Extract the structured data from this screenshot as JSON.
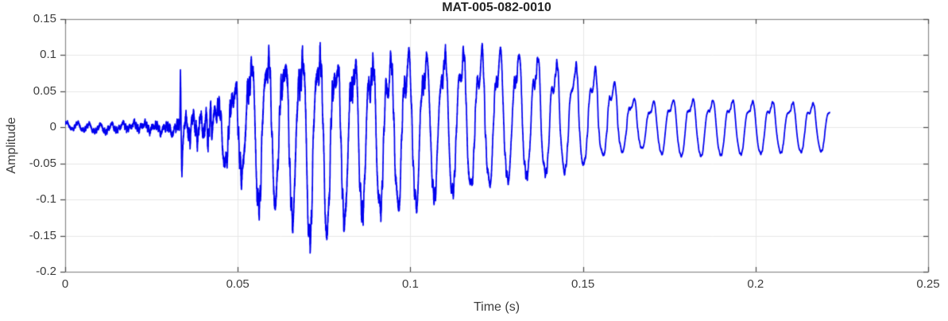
{
  "chart_data": {
    "type": "line",
    "title": "MAT-005-082-0010",
    "xlabel": "Time (s)",
    "ylabel": "Amplitude",
    "xlim": [
      0,
      0.25
    ],
    "ylim": [
      -0.2,
      0.15
    ],
    "xticks": [
      0,
      0.05,
      0.1,
      0.15,
      0.2,
      0.25
    ],
    "xtick_labels": [
      "0",
      "0.05",
      "0.1",
      "0.15",
      "0.2",
      "0.25"
    ],
    "yticks": [
      -0.2,
      -0.15,
      -0.1,
      -0.05,
      0,
      0.05,
      0.1,
      0.15
    ],
    "ytick_labels": [
      "-0.2",
      "-0.15",
      "-0.1",
      "-0.05",
      "0",
      "0.05",
      "0.1",
      "0.15"
    ],
    "grid": true,
    "legend": "none",
    "colors": {
      "line": "#0000EE",
      "grid": "#E7E7E7",
      "axis_box": "#8A8A8A",
      "tick": "#4A4A4A",
      "tick_label": "#3D3D3D",
      "title": "#262626",
      "axis_label": "#3D3D3D",
      "background": "#FFFFFF"
    },
    "signal": {
      "description": "burst waveform: quiet noise floor, trigger spike at 0.0334 s, growing oscillatory burst peaking near 0.13 / -0.164, slow decay into steady ~0.045 amplitude ringing, trace ends at 0.222 s",
      "t_start": 0.0,
      "t_end": 0.2215,
      "synth_rate_hz": 60000,
      "pre_freq_hz": 310,
      "pre_amp": 0.0045,
      "spike_time": 0.0334,
      "spike_peak": 0.065,
      "spike_trough": -0.052,
      "spike_peak_add": 0.068,
      "spike_trough_add": -0.062,
      "burst_start": 0.0425,
      "freq_profile_hz": [
        [
          0,
          210
        ],
        [
          0.0425,
          210
        ],
        [
          0.09,
          193
        ],
        [
          0.13,
          185
        ],
        [
          0.155,
          178
        ],
        [
          0.2215,
          170
        ]
      ],
      "harmonics": [
        [
          1,
          1.0,
          0.0
        ],
        [
          2,
          0.24,
          2.1
        ],
        [
          3,
          0.11,
          0.9
        ]
      ],
      "harmonic_norm": 1.18,
      "envelope_upper": [
        [
          0.0425,
          0.028
        ],
        [
          0.046,
          0.046
        ],
        [
          0.049,
          0.073
        ],
        [
          0.052,
          0.095
        ],
        [
          0.0565,
          0.125
        ],
        [
          0.061,
          0.112
        ],
        [
          0.066,
          0.118
        ],
        [
          0.0715,
          0.122
        ],
        [
          0.0765,
          0.115
        ],
        [
          0.083,
          0.102
        ],
        [
          0.088,
          0.105
        ],
        [
          0.0926,
          0.112
        ],
        [
          0.0976,
          0.116
        ],
        [
          0.1025,
          0.121
        ],
        [
          0.108,
          0.124
        ],
        [
          0.113,
          0.127
        ],
        [
          0.1186,
          0.13
        ],
        [
          0.124,
          0.129
        ],
        [
          0.129,
          0.13
        ],
        [
          0.134,
          0.125
        ],
        [
          0.14,
          0.111
        ],
        [
          0.145,
          0.107
        ],
        [
          0.1513,
          0.105
        ],
        [
          0.1565,
          0.0925
        ],
        [
          0.162,
          0.058
        ],
        [
          0.168,
          0.04
        ],
        [
          0.1737,
          0.047
        ],
        [
          0.181,
          0.047
        ],
        [
          0.19,
          0.046
        ],
        [
          0.2,
          0.044
        ],
        [
          0.21,
          0.042
        ],
        [
          0.2215,
          0.04
        ]
      ],
      "envelope_lower": [
        [
          0.0425,
          0.028
        ],
        [
          0.0477,
          0.061
        ],
        [
          0.052,
          0.072
        ],
        [
          0.0571,
          0.124
        ],
        [
          0.0617,
          0.097
        ],
        [
          0.0667,
          0.14
        ],
        [
          0.0713,
          0.164
        ],
        [
          0.0763,
          0.146
        ],
        [
          0.0811,
          0.138
        ],
        [
          0.086,
          0.125
        ],
        [
          0.091,
          0.12
        ],
        [
          0.096,
          0.115
        ],
        [
          0.101,
          0.11
        ],
        [
          0.106,
          0.102
        ],
        [
          0.111,
          0.095
        ],
        [
          0.116,
          0.088
        ],
        [
          0.121,
          0.082
        ],
        [
          0.126,
          0.077
        ],
        [
          0.131,
          0.072
        ],
        [
          0.136,
          0.068
        ],
        [
          0.141,
          0.065
        ],
        [
          0.146,
          0.062
        ],
        [
          0.1513,
          0.05
        ],
        [
          0.153,
          0.043
        ],
        [
          0.158,
          0.038
        ],
        [
          0.163,
          0.033
        ],
        [
          0.168,
          0.03
        ],
        [
          0.174,
          0.04
        ],
        [
          0.181,
          0.042
        ],
        [
          0.19,
          0.04
        ],
        [
          0.2,
          0.038
        ],
        [
          0.21,
          0.036
        ],
        [
          0.2215,
          0.034
        ]
      ],
      "fur_profile": [
        [
          0,
          0.0012
        ],
        [
          0.0334,
          0.005
        ],
        [
          0.0425,
          0.009
        ],
        [
          0.05,
          0.013
        ],
        [
          0.07,
          0.015
        ],
        [
          0.09,
          0.012
        ],
        [
          0.105,
          0.009
        ],
        [
          0.12,
          0.007
        ],
        [
          0.135,
          0.005
        ],
        [
          0.15,
          0.003
        ],
        [
          0.158,
          0.002
        ],
        [
          0.168,
          0.001
        ],
        [
          0.2215,
          0.001
        ]
      ]
    }
  }
}
